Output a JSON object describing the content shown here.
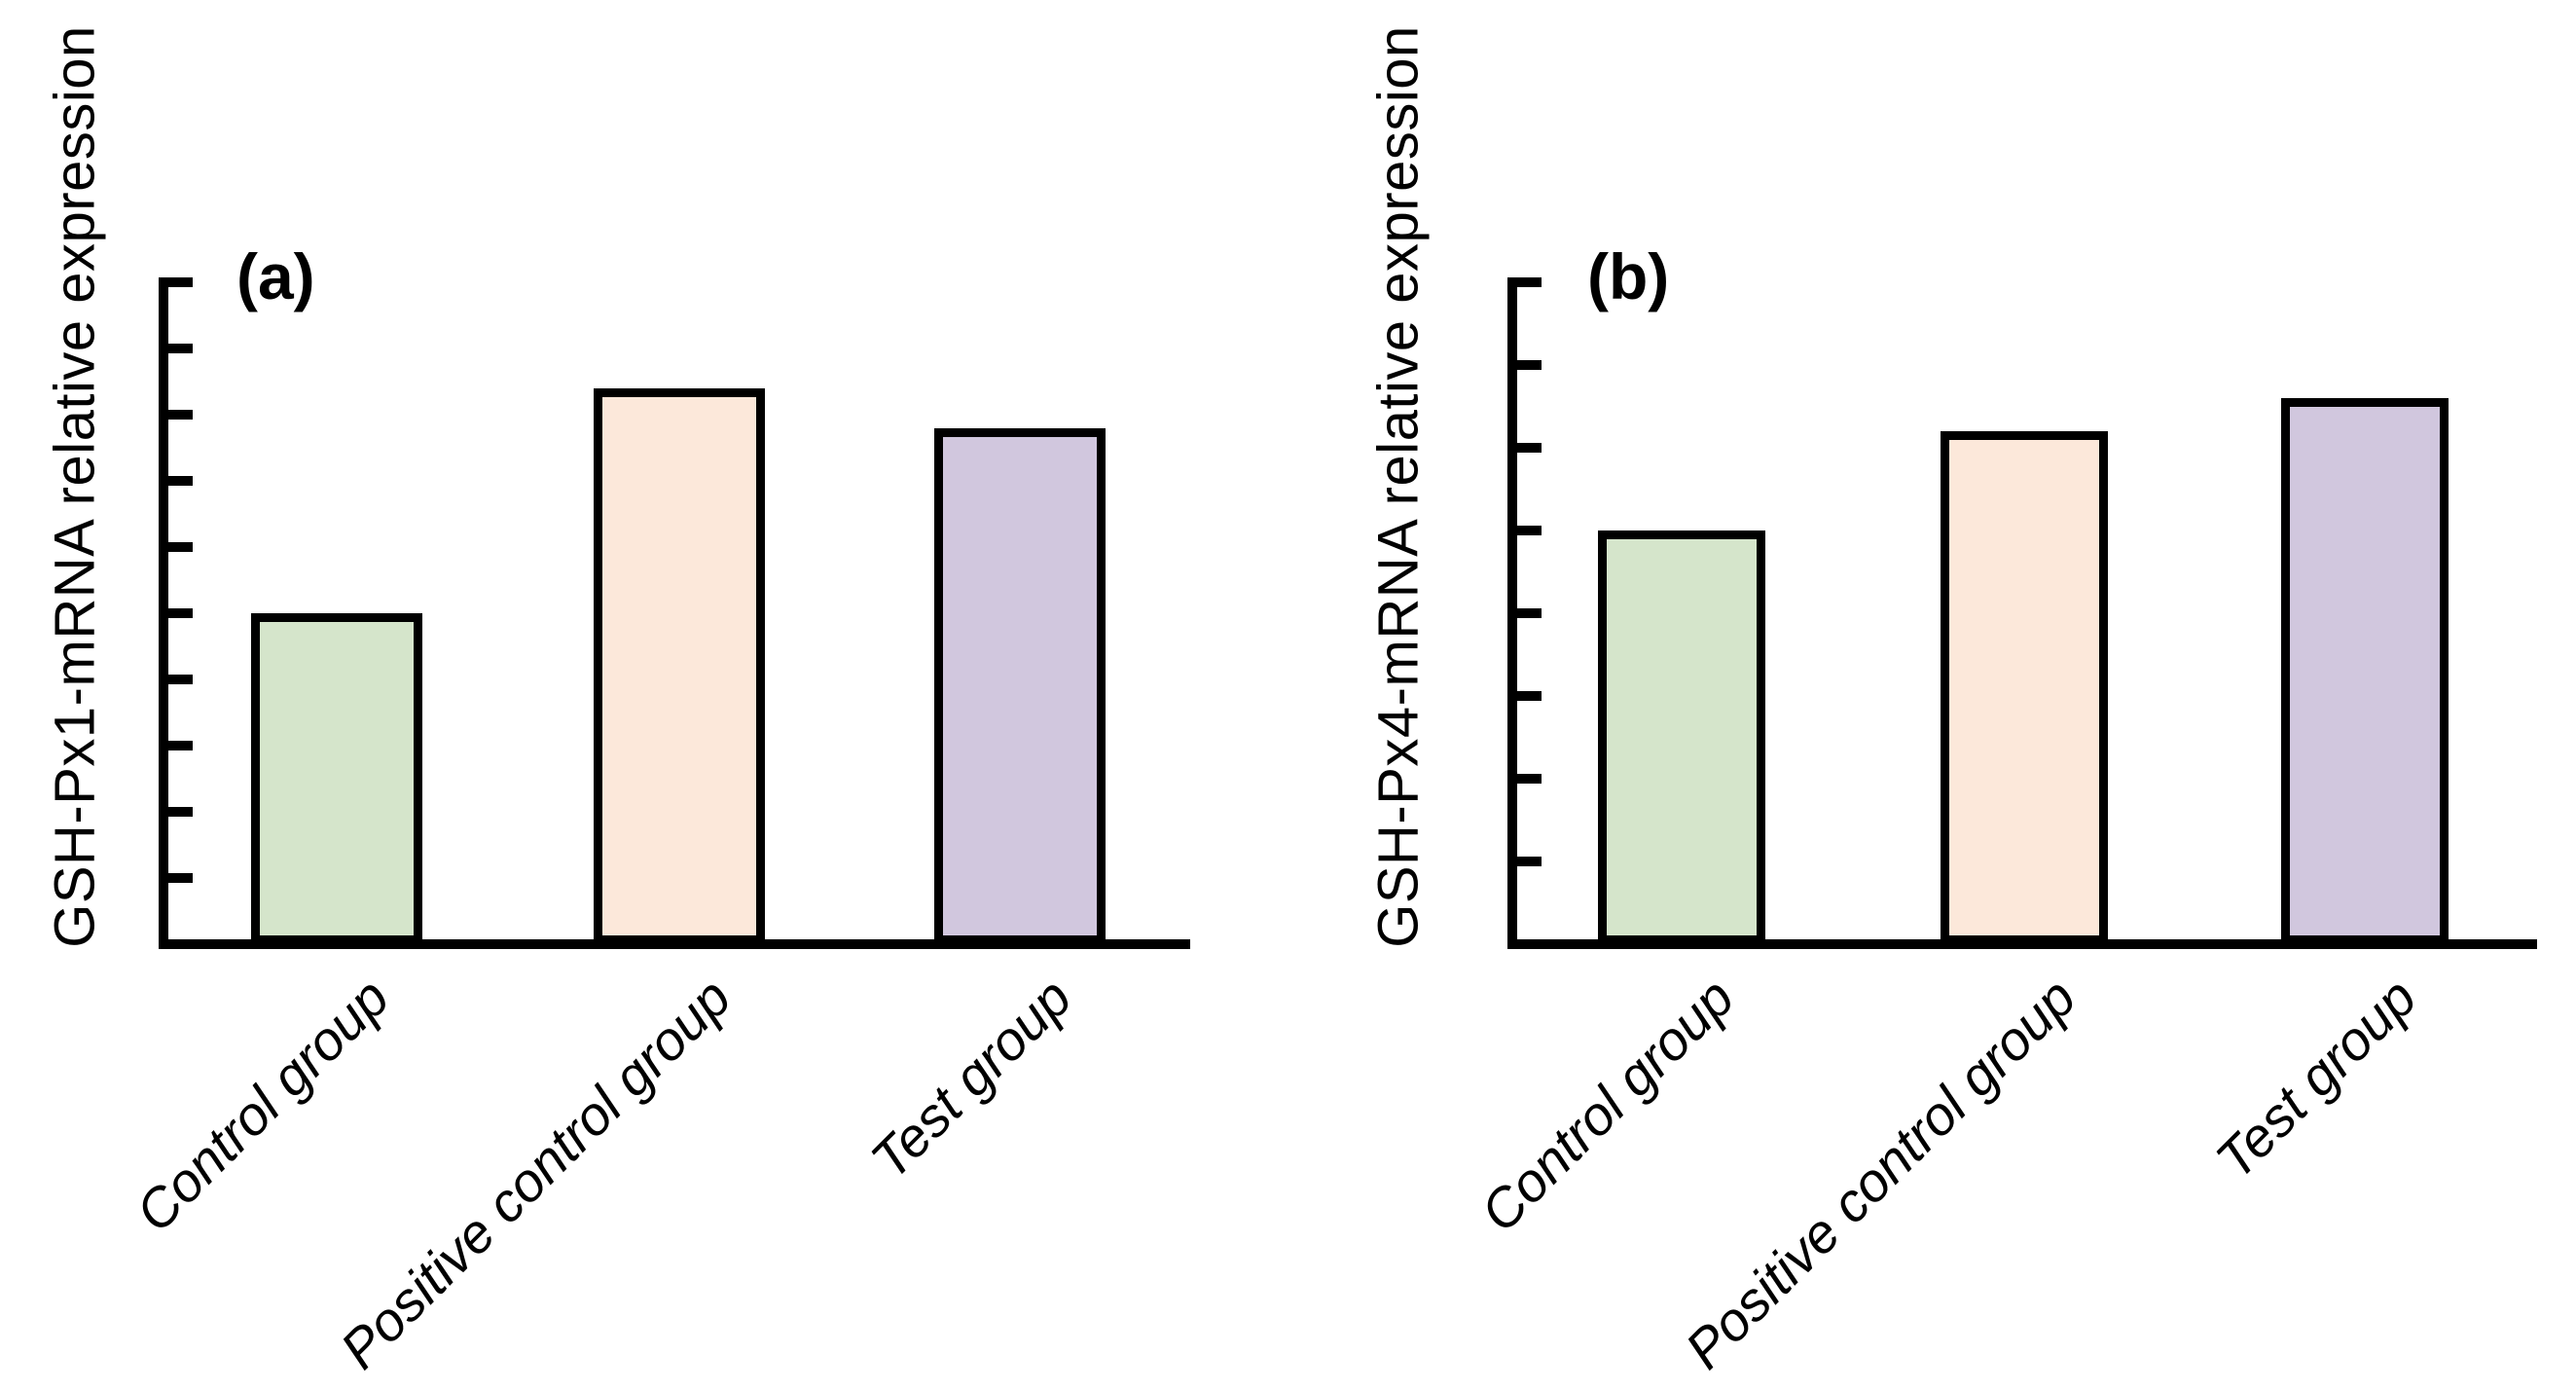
{
  "figure": {
    "background_color": "#ffffff",
    "charts": [
      {
        "panel_label": "(a)",
        "y_axis_label": "GSH-Px1-mRNA relative expression"
      },
      {
        "panel_label": "(b)",
        "y_axis_label": "GSH-Px4-mRNA relative expression"
      }
    ]
  },
  "chart_data": [
    {
      "type": "bar",
      "panel": "(a)",
      "title": "",
      "xlabel": "",
      "ylabel": "GSH-Px1-mRNA relative expression",
      "categories": [
        "Control group",
        "Positive control group",
        "Test group"
      ],
      "values": [
        0.5,
        0.84,
        0.78
      ],
      "ylim": [
        0,
        1.0
      ],
      "y_tick_step": 0.1,
      "y_tick_labels_visible": false,
      "x_tick_label_rotation_deg": 45,
      "bar_fill_colors": [
        "#d5e5cb",
        "#fce8da",
        "#d1c7de"
      ],
      "bar_edge_color": "#000000",
      "axis_color": "#000000",
      "grid": false,
      "legend": "none"
    },
    {
      "type": "bar",
      "panel": "(b)",
      "title": "",
      "xlabel": "",
      "ylabel": "GSH-Px4-mRNA relative expression",
      "categories": [
        "Control group",
        "Positive control group",
        "Test group"
      ],
      "values": [
        0.5,
        0.62,
        0.66
      ],
      "ylim": [
        0,
        0.8
      ],
      "y_tick_step": 0.1,
      "y_tick_labels_visible": false,
      "x_tick_label_rotation_deg": 45,
      "bar_fill_colors": [
        "#d5e5cb",
        "#fce8da",
        "#d1c7de"
      ],
      "bar_edge_color": "#000000",
      "axis_color": "#000000",
      "grid": false,
      "legend": "none"
    }
  ]
}
